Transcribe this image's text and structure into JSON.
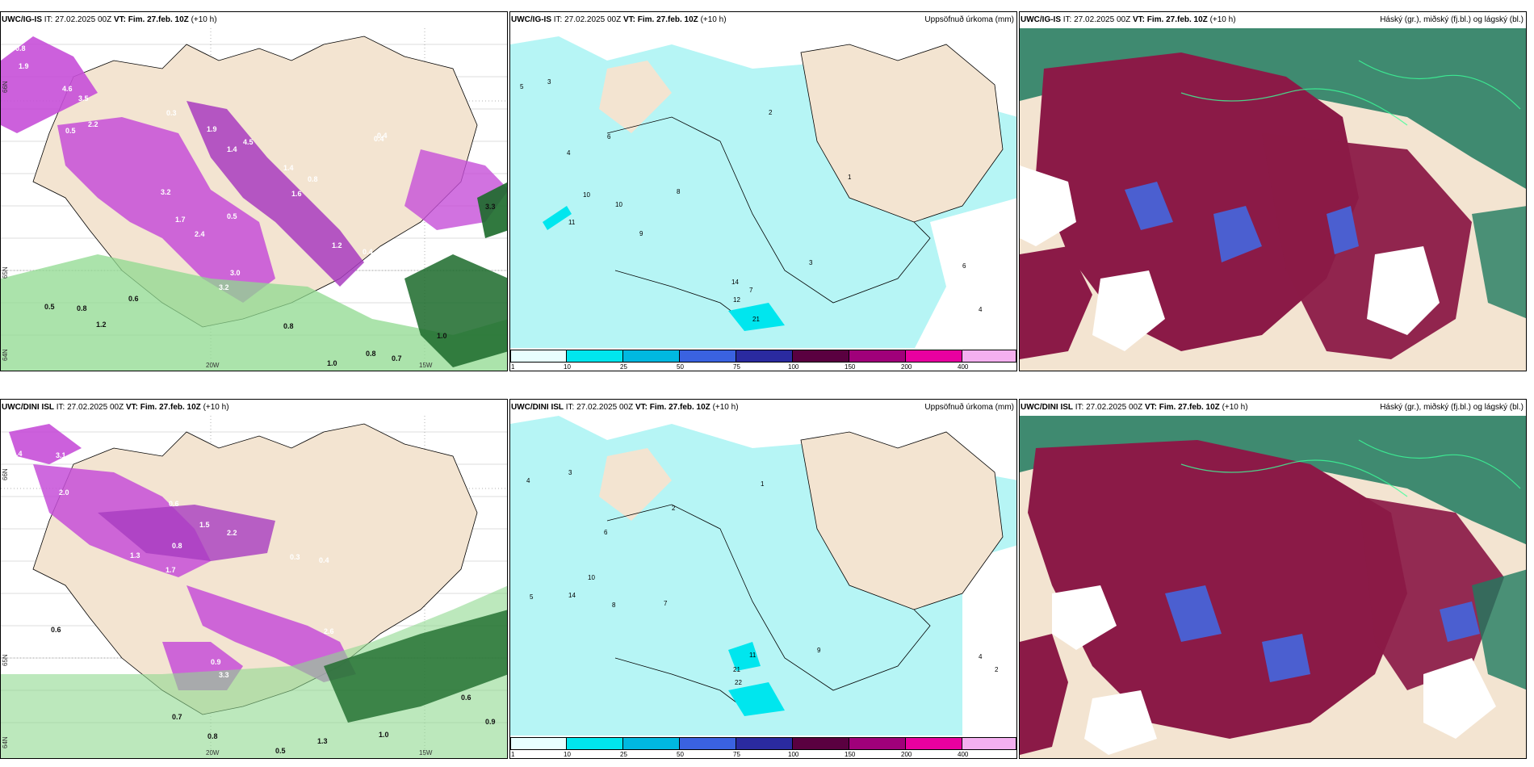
{
  "rows": [
    {
      "panels": [
        {
          "model": "UWC/IG-IS",
          "issue": "IT: 27.02.2025 00Z",
          "vt": "VT: Fim. 27.feb. 10Z",
          "lead": "(+10 h)",
          "right_title": "",
          "values": [
            "0.8",
            "1.9",
            "4.6",
            "3.5",
            "0.3",
            "2.2",
            "0.5",
            "1.9",
            "1.4",
            "4.5",
            "0.4",
            "1.4",
            "1.6",
            "0.8",
            "3.2",
            "2.4",
            "1.7",
            "0.5",
            "1.2",
            "3.0",
            "3.2",
            "0.4",
            "0.5",
            "0.8",
            "1.2",
            "0.6",
            "0.8",
            "0.4",
            "3.3",
            "1.0",
            "0.8",
            "0.7",
            "1.0"
          ],
          "lon_labels": [
            "20W",
            "15W"
          ],
          "lat_labels": [
            "66N",
            "65N",
            "64N"
          ]
        },
        {
          "model": "UWC/IG-IS",
          "issue": "IT: 27.02.2025 00Z",
          "vt": "VT: Fim. 27.feb. 10Z",
          "lead": "(+10 h)",
          "right_title": "Uppsöfnuð úrkoma (mm)",
          "values": [
            "5",
            "3",
            "4",
            "2",
            "6",
            "10",
            "11",
            "8",
            "9",
            "14",
            "7",
            "12",
            "21",
            "1",
            "3",
            "6",
            "4",
            "10"
          ],
          "colorbar": [
            "1",
            "10",
            "25",
            "50",
            "75",
            "100",
            "150",
            "200",
            "400"
          ]
        },
        {
          "model": "UWC/IG-IS",
          "issue": "IT: 27.02.2025 00Z",
          "vt": "VT: Fim. 27.feb. 10Z",
          "lead": "(+10 h)",
          "right_title": "Háský (gr.), miðský (fj.bl.) og lágský (bl.)"
        }
      ]
    },
    {
      "panels": [
        {
          "model": "UWC/DINI ISL",
          "issue": "IT: 27.02.2025 00Z",
          "vt": "VT: Fim. 27.feb. 10Z",
          "lead": "(+10 h)",
          "right_title": "",
          "values": [
            "1.4",
            "3.1",
            "2.0",
            "0.6",
            "1.5",
            "2.2",
            "0.8",
            "1.7",
            "1.3",
            "0.3",
            "0.4",
            "2.6",
            "0.9",
            "3.3",
            "0.6",
            "0.7",
            "0.8",
            "1.0",
            "0.5",
            "1.3",
            "0.6",
            "0.9"
          ],
          "lon_labels": [
            "20W",
            "15W"
          ],
          "lat_labels": [
            "66N",
            "65N",
            "64N"
          ]
        },
        {
          "model": "UWC/DINI ISL",
          "issue": "IT: 27.02.2025 00Z",
          "vt": "VT: Fim. 27.feb. 10Z",
          "lead": "(+10 h)",
          "right_title": "Uppsöfnuð úrkoma (mm)",
          "values": [
            "4",
            "3",
            "2",
            "5",
            "6",
            "1",
            "8",
            "10",
            "14",
            "7",
            "9",
            "11",
            "22",
            "21",
            "4",
            "2"
          ],
          "colorbar": [
            "1",
            "10",
            "25",
            "50",
            "75",
            "100",
            "150",
            "200",
            "400"
          ]
        },
        {
          "model": "UWC/DINI ISL",
          "issue": "IT: 27.02.2025 00Z",
          "vt": "VT: Fim. 27.feb. 10Z",
          "lead": "(+10 h)",
          "right_title": "Háský (gr.), miðský (fj.bl.) og lágský (bl.)"
        }
      ]
    }
  ],
  "colors": {
    "land": "#f3e4d1",
    "precip_snow": "#c64fd8",
    "precip_snow_dark": "#7a2a86",
    "precip_rain": "#8fd98f",
    "precip_rain_dark": "#1b6a2a",
    "accum_light": "#b6f5f5",
    "accum_mid": "#45e3e3",
    "high_cloud": "#1f7a5f",
    "mid_cloud": "#8b1a47",
    "low_cloud": "#4b5fd0",
    "cbar": [
      "#e8ffff",
      "#00e6ee",
      "#00b8e0",
      "#3a62e0",
      "#2a2aa0",
      "#5a0040",
      "#a0007a",
      "#e800a0",
      "#f4b0f0"
    ]
  }
}
